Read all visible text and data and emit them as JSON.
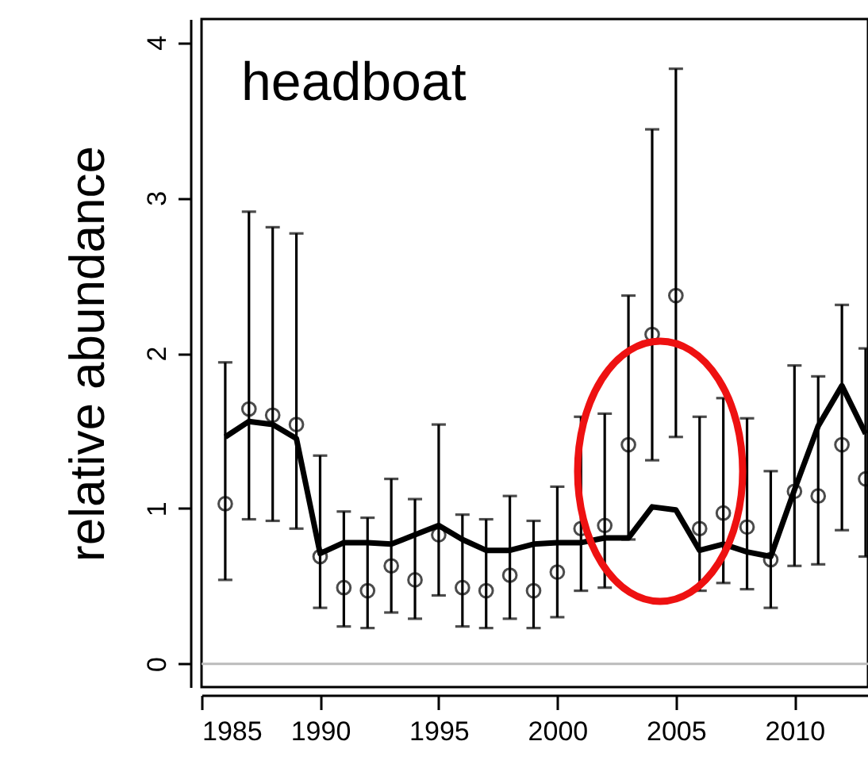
{
  "chart_data": {
    "type": "scatter",
    "ylabel": "relative abundance",
    "annotations": [
      "headboat"
    ],
    "x": [
      1986,
      1987,
      1988,
      1989,
      1990,
      1991,
      1992,
      1993,
      1994,
      1995,
      1996,
      1997,
      1998,
      1999,
      2000,
      2001,
      2002,
      2003,
      2004,
      2005,
      2006,
      2007,
      2008,
      2009,
      2010,
      2011,
      2012,
      2013
    ],
    "series": [
      {
        "color": "#000000",
        "marker": "circle",
        "values": [
          1.03,
          1.64,
          1.6,
          1.54,
          0.69,
          0.49,
          0.47,
          0.63,
          0.54,
          0.83,
          0.49,
          0.47,
          0.57,
          0.47,
          0.59,
          0.87,
          0.89,
          1.41,
          2.12,
          2.37,
          0.87,
          0.97,
          0.88,
          0.67,
          1.11,
          1.08,
          1.41,
          1.19
        ],
        "errors": [
          [
            0.54,
            1.94
          ],
          [
            0.93,
            2.91
          ],
          [
            0.92,
            2.81
          ],
          [
            0.87,
            2.77
          ],
          [
            0.36,
            1.34
          ],
          [
            0.24,
            0.98
          ],
          [
            0.23,
            0.94
          ],
          [
            0.33,
            1.19
          ],
          [
            0.29,
            1.06
          ],
          [
            0.44,
            1.54
          ],
          [
            0.24,
            0.96
          ],
          [
            0.23,
            0.93
          ],
          [
            0.29,
            1.08
          ],
          [
            0.23,
            0.92
          ],
          [
            0.3,
            1.14
          ],
          [
            0.47,
            1.59
          ],
          [
            0.49,
            1.61
          ],
          [
            0.8,
            2.37
          ],
          [
            1.31,
            3.44
          ],
          [
            1.46,
            3.83
          ],
          [
            0.47,
            1.59
          ],
          [
            0.52,
            1.71
          ],
          [
            0.48,
            1.58
          ],
          [
            0.36,
            1.24
          ],
          [
            0.63,
            1.92
          ],
          [
            0.64,
            1.85
          ],
          [
            0.86,
            2.31
          ],
          [
            0.69,
            2.03
          ]
        ]
      },
      {
        "type": "line",
        "color": "#000000",
        "values": [
          1.46,
          1.56,
          1.54,
          1.45,
          0.71,
          0.78,
          0.78,
          0.77,
          0.83,
          0.89,
          0.8,
          0.73,
          0.73,
          0.77,
          0.78,
          0.78,
          0.81,
          0.81,
          1.01,
          0.99,
          0.73,
          0.77,
          0.72,
          0.69,
          1.12,
          1.53,
          1.79,
          1.48
        ]
      }
    ],
    "xlim": [
      1985,
      2013.1
    ],
    "xticks": [
      1985,
      1990,
      1995,
      2000,
      2005,
      2010
    ],
    "ylim": [
      -0.15,
      4.15
    ],
    "yticks": [
      0,
      1,
      2,
      3,
      4
    ],
    "ref_lines": [
      {
        "axis": "y",
        "value": 0,
        "color": "#bbbbbb"
      }
    ],
    "grid": false
  }
}
